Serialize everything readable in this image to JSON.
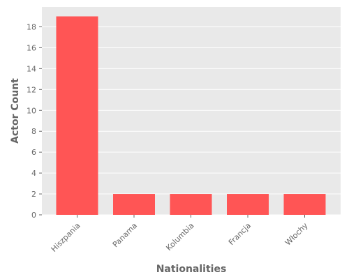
{
  "chart_data": {
    "type": "bar",
    "title": "",
    "xlabel": "Nationalities",
    "ylabel": "Actor Count",
    "categories": [
      "Hiszpania",
      "Panama",
      "Kolumbia",
      "Francja",
      "Włochy"
    ],
    "values": [
      19,
      2,
      2,
      2,
      2
    ],
    "ylim": [
      0,
      19.9
    ],
    "yticks": [
      0,
      2,
      4,
      6,
      8,
      10,
      12,
      14,
      16,
      18
    ],
    "grid": true,
    "legend": "none",
    "colors": {
      "bar": "#ff5555",
      "background": "#e9e9e9",
      "grid": "#ffffff",
      "text": "#666666"
    }
  }
}
